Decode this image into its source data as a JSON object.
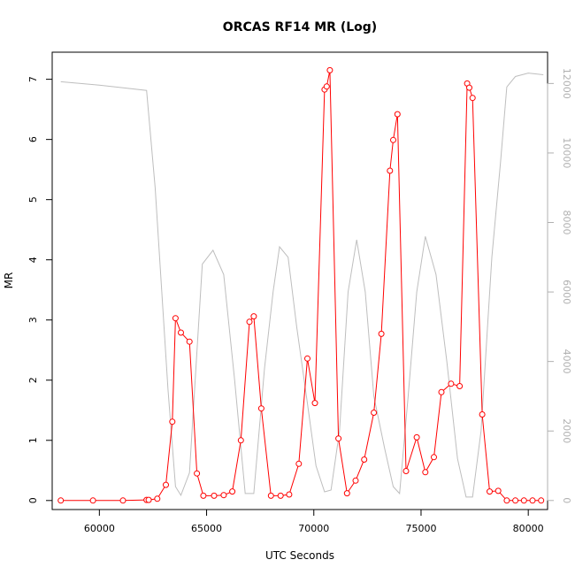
{
  "chart_data": {
    "type": "line",
    "title": "ORCAS RF14 MR (Log)",
    "xlabel": "UTC Seconds",
    "ylabel": "MR",
    "xlim": [
      57800,
      80900
    ],
    "ylim": [
      -0.15,
      7.45
    ],
    "y2lim": [
      -260,
      12900
    ],
    "x_ticks": [
      60000,
      65000,
      70000,
      75000,
      80000
    ],
    "y_ticks": [
      0,
      1,
      2,
      3,
      4,
      5,
      6,
      7
    ],
    "y2_ticks": [
      0,
      2000,
      4000,
      6000,
      8000,
      10000,
      12000
    ],
    "grid": false,
    "series": [
      {
        "color": "#ff0000",
        "axis": "left",
        "marker": "open-circle",
        "x": [
          58200,
          59700,
          61100,
          62200,
          62300,
          62700,
          63100,
          63400,
          63550,
          63800,
          64200,
          64550,
          64850,
          65350,
          65800,
          66200,
          66600,
          67000,
          67200,
          67550,
          68000,
          68450,
          68850,
          69300,
          69700,
          70050,
          70500,
          70600,
          70750,
          71150,
          71550,
          71950,
          72350,
          72800,
          73150,
          73550,
          73700,
          73900,
          74300,
          74800,
          75200,
          75600,
          75950,
          76400,
          76800,
          77150,
          77250,
          77400,
          77850,
          78200,
          78600,
          79000,
          79400,
          79800,
          80200,
          80600
        ],
        "y": [
          0.0,
          0.0,
          0.0,
          0.01,
          0.01,
          0.03,
          0.26,
          1.31,
          3.03,
          2.79,
          2.64,
          0.45,
          0.08,
          0.08,
          0.09,
          0.15,
          1.0,
          2.97,
          3.06,
          1.53,
          0.08,
          0.08,
          0.1,
          0.61,
          2.36,
          1.62,
          6.83,
          6.88,
          7.15,
          1.03,
          0.12,
          0.33,
          0.68,
          1.46,
          2.77,
          5.48,
          5.99,
          6.42,
          0.49,
          1.05,
          0.47,
          0.72,
          1.8,
          1.94,
          1.9,
          6.93,
          6.86,
          6.69,
          1.43,
          0.15,
          0.16,
          0.0,
          0.0,
          0.0,
          0.0,
          0.0
        ]
      },
      {
        "color": "#bebebe",
        "axis": "right",
        "marker": "none",
        "x": [
          58200,
          60000,
          62200,
          62600,
          63200,
          63550,
          63800,
          64200,
          64800,
          65300,
          65800,
          66300,
          66800,
          67200,
          67700,
          68100,
          68400,
          68800,
          69200,
          69700,
          70100,
          70500,
          70800,
          71200,
          71600,
          72000,
          72400,
          72800,
          73300,
          73700,
          74000,
          74400,
          74800,
          75200,
          75700,
          76200,
          76700,
          77100,
          77400,
          77800,
          78300,
          78700,
          79000,
          79400,
          80000,
          80700
        ],
        "y": [
          12050,
          11950,
          11800,
          9000,
          3200,
          400,
          150,
          800,
          6800,
          7200,
          6500,
          3500,
          200,
          200,
          3800,
          6000,
          7300,
          7000,
          5000,
          2800,
          1000,
          250,
          300,
          2000,
          6000,
          7500,
          6000,
          3000,
          1500,
          400,
          200,
          3000,
          6000,
          7600,
          6500,
          4000,
          1200,
          100,
          100,
          2000,
          7000,
          9700,
          11900,
          12200,
          12300,
          12250
        ]
      }
    ]
  }
}
